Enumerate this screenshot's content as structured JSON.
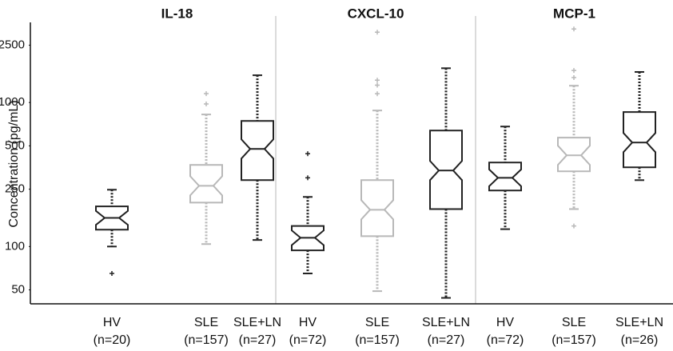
{
  "chart_data": [
    {
      "type": "box",
      "title": "IL-18",
      "y_label": "Concentration (pg/mL)",
      "log_scale": true,
      "ylim": [
        40,
        3600
      ],
      "yticks": [
        50,
        100,
        250,
        500,
        1000,
        2500
      ],
      "categories": [
        "HV",
        "SLE",
        "SLE+LN"
      ],
      "sample_sizes": [
        "(n=20)",
        "(n=157)",
        "(n=27)"
      ],
      "colors": [
        "#222222",
        "#b8b8b8",
        "#222222"
      ],
      "boxes": [
        {
          "whisker_low": 100,
          "q1": 131,
          "median": 158,
          "q3": 190,
          "whisker_high": 248,
          "outliers": [
            65
          ]
        },
        {
          "whisker_low": 104,
          "q1": 202,
          "median": 264,
          "q3": 369,
          "whisker_high": 826,
          "outliers": [
            977,
            1152
          ]
        },
        {
          "whisker_low": 111,
          "q1": 289,
          "median": 476,
          "q3": 745,
          "whisker_high": 1546,
          "outliers": []
        }
      ]
    },
    {
      "type": "box",
      "title": "CXCL-10",
      "categories": [
        "HV",
        "SLE",
        "SLE+LN"
      ],
      "sample_sizes": [
        "(n=72)",
        "(n=157)",
        "(n=27)"
      ],
      "colors": [
        "#222222",
        "#b8b8b8",
        "#222222"
      ],
      "boxes": [
        {
          "whisker_low": 65,
          "q1": 94,
          "median": 115,
          "q3": 139,
          "whisker_high": 221,
          "outliers": [
            300,
            441
          ]
        },
        {
          "whisker_low": 49,
          "q1": 118,
          "median": 180,
          "q3": 289,
          "whisker_high": 880,
          "outliers": [
            1150,
            1320,
            1430,
            3080
          ]
        },
        {
          "whisker_low": 44,
          "q1": 182,
          "median": 337,
          "q3": 639,
          "whisker_high": 1730,
          "outliers": []
        }
      ]
    },
    {
      "type": "box",
      "title": "MCP-1",
      "categories": [
        "HV",
        "SLE",
        "SLE+LN"
      ],
      "sample_sizes": [
        "(n=72)",
        "(n=157)",
        "(n=26)"
      ],
      "colors": [
        "#222222",
        "#b8b8b8",
        "#222222"
      ],
      "boxes": [
        {
          "whisker_low": 132,
          "q1": 245,
          "median": 300,
          "q3": 383,
          "whisker_high": 681,
          "outliers": []
        },
        {
          "whisker_low": 182,
          "q1": 333,
          "median": 430,
          "q3": 570,
          "whisker_high": 1308,
          "outliers": [
            139,
            1490,
            1670,
            3240
          ]
        },
        {
          "whisker_low": 289,
          "q1": 355,
          "median": 527,
          "q3": 858,
          "whisker_high": 1630,
          "outliers": []
        }
      ]
    }
  ]
}
